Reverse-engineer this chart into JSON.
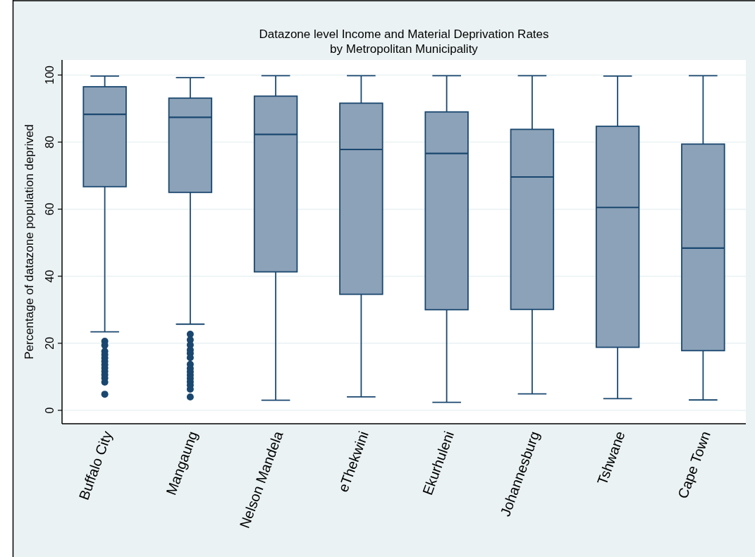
{
  "chart_data": {
    "type": "box",
    "title": "Datazone level Income and Material Deprivation Rates",
    "subtitle": "by Metropolitan Municipality",
    "ylabel": "Percentage of datazone population deprived",
    "categories": [
      "Buffalo City",
      "Mangaung",
      "Nelson Mandela",
      "eThekwini",
      "Ekurhuleni",
      "Johannesburg",
      "Tshwane",
      "Cape Town"
    ],
    "series": [
      {
        "color": "#8ca2b8",
        "boxes": [
          {
            "low": 23.4,
            "q1": 66.7,
            "median": 88.3,
            "q3": 96.5,
            "high": 99.7,
            "outliers": [
              20.6,
              19.4,
              17.6,
              16.6,
              15.6,
              14.6,
              13.6,
              12.6,
              11.6,
              10.6,
              9.6,
              8.4,
              4.8
            ]
          },
          {
            "low": 25.7,
            "q1": 65.0,
            "median": 87.4,
            "q3": 93.1,
            "high": 99.2,
            "outliers": [
              22.7,
              21.0,
              19.5,
              18.0,
              17.0,
              15.7,
              13.7,
              12.5,
              11.5,
              10.5,
              9.5,
              8.5,
              7.5,
              6.3,
              4.0
            ]
          },
          {
            "low": 3.0,
            "q1": 41.3,
            "median": 82.3,
            "q3": 93.7,
            "high": 99.8
          },
          {
            "low": 4.0,
            "q1": 34.6,
            "median": 77.8,
            "q3": 91.6,
            "high": 99.8
          },
          {
            "low": 2.4,
            "q1": 30.0,
            "median": 76.6,
            "q3": 89.0,
            "high": 99.8
          },
          {
            "low": 4.9,
            "q1": 30.1,
            "median": 69.6,
            "q3": 83.8,
            "high": 99.8
          },
          {
            "low": 3.5,
            "q1": 18.8,
            "median": 60.5,
            "q3": 84.7,
            "high": 99.7
          },
          {
            "low": 3.1,
            "q1": 17.8,
            "median": 48.4,
            "q3": 79.4,
            "high": 99.8
          }
        ]
      }
    ],
    "ylim": [
      -4,
      104.5
    ],
    "yticks": [
      0,
      20,
      40,
      60,
      80,
      100
    ],
    "grid": "y",
    "marker": "circle"
  }
}
